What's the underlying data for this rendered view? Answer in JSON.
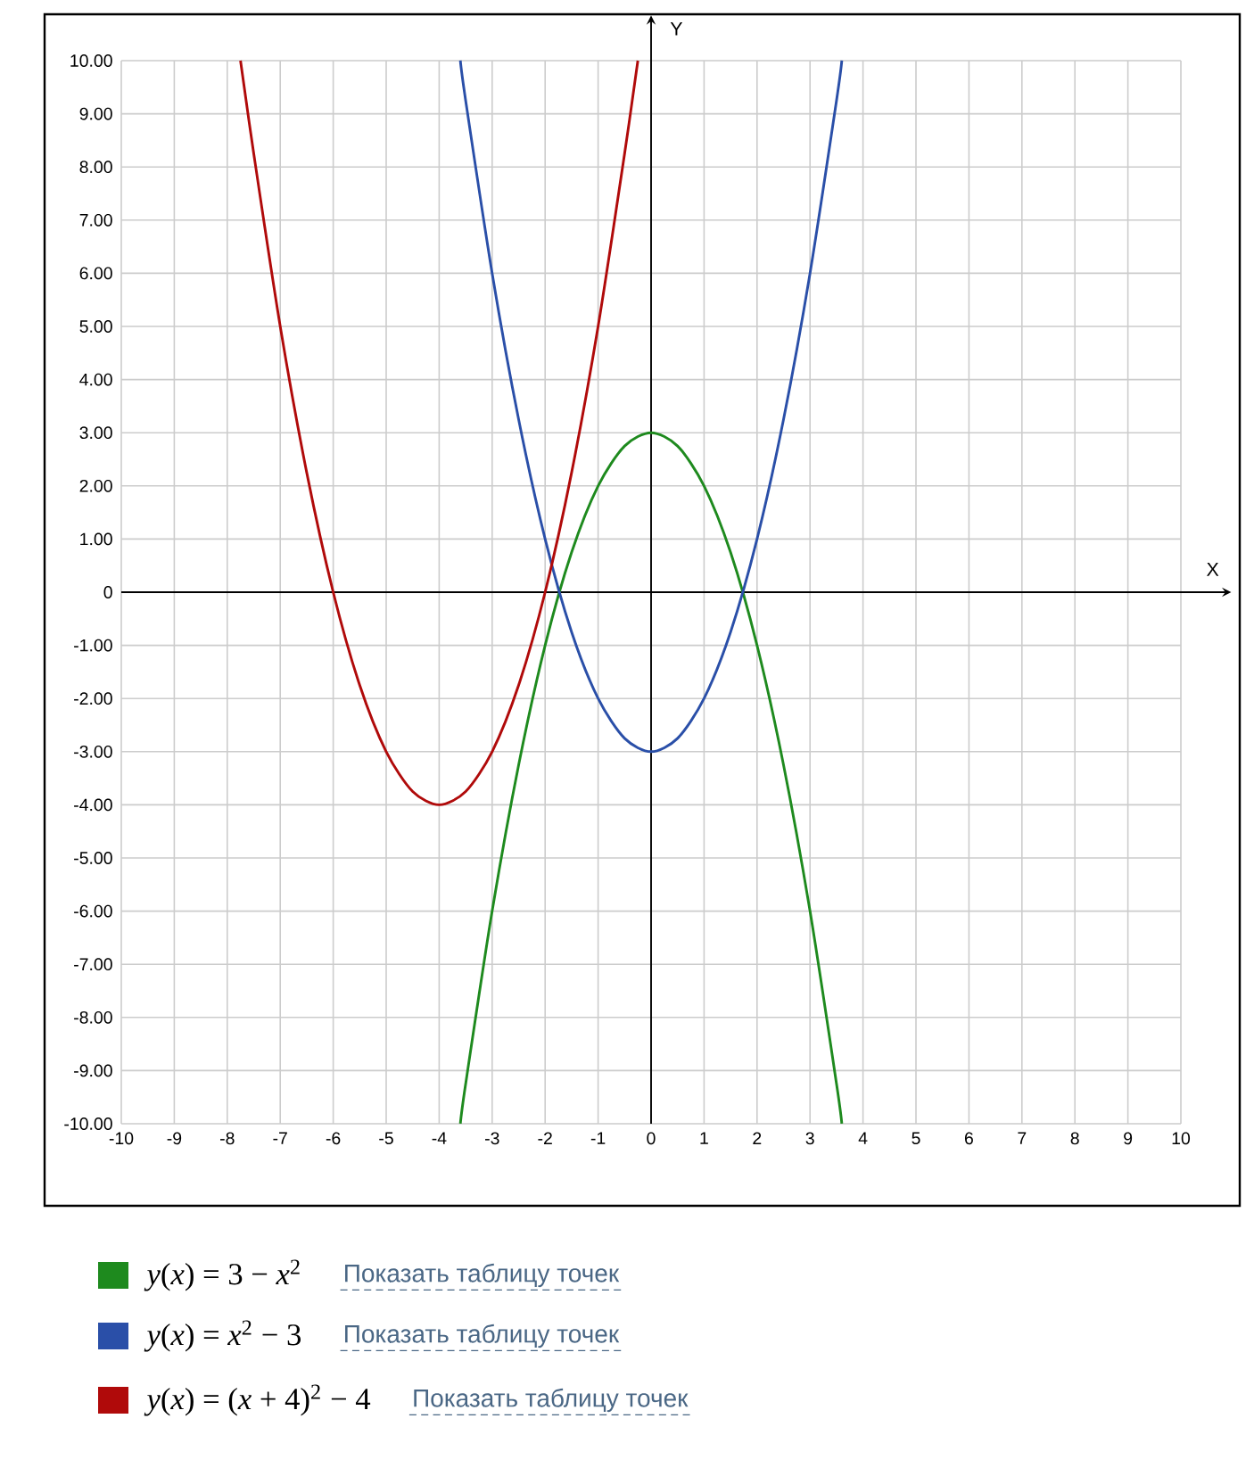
{
  "chart_data": {
    "type": "line",
    "xlabel": "X",
    "ylabel": "Y",
    "xlim": [
      -10,
      10
    ],
    "ylim": [
      -10,
      10
    ],
    "xticks": [
      -10,
      -9,
      -8,
      -7,
      -6,
      -5,
      -4,
      -3,
      -2,
      -1,
      0,
      1,
      2,
      3,
      4,
      5,
      6,
      7,
      8,
      9,
      10
    ],
    "yticks": [
      {
        "value": -10,
        "label": "-10.00"
      },
      {
        "value": -9,
        "label": "-9.00"
      },
      {
        "value": -8,
        "label": "-8.00"
      },
      {
        "value": -7,
        "label": "-7.00"
      },
      {
        "value": -6,
        "label": "-6.00"
      },
      {
        "value": -5,
        "label": "-5.00"
      },
      {
        "value": -4,
        "label": "-4.00"
      },
      {
        "value": -3,
        "label": "-3.00"
      },
      {
        "value": -2,
        "label": "-2.00"
      },
      {
        "value": -1,
        "label": "-1.00"
      },
      0,
      {
        "value": 1,
        "label": "1.00"
      },
      {
        "value": 2,
        "label": "2.00"
      },
      {
        "value": 3,
        "label": "3.00"
      },
      {
        "value": 4,
        "label": "4.00"
      },
      {
        "value": 5,
        "label": "5.00"
      },
      {
        "value": 6,
        "label": "6.00"
      },
      {
        "value": 7,
        "label": "7.00"
      },
      {
        "value": 8,
        "label": "8.00"
      },
      {
        "value": 9,
        "label": "9.00"
      },
      {
        "value": 10,
        "label": "10.00"
      }
    ],
    "grid": true,
    "legend": "bottom",
    "line_style": "solid",
    "series": [
      {
        "name": "*y*(*x*) = 3 − *x*$^{2}$",
        "color": "#1e8a1e",
        "x": [
          -3.6,
          -3.5,
          -3,
          -2.5,
          -2,
          -1.5,
          -1,
          -0.5,
          0,
          0.5,
          1,
          1.5,
          2,
          2.5,
          3,
          3.5,
          3.6
        ],
        "values": [
          -10,
          -9.25,
          -6,
          -3.25,
          -1,
          0.75,
          2,
          2.75,
          3,
          2.75,
          2,
          0.75,
          -1,
          -3.25,
          -6,
          -9.25,
          -10
        ]
      },
      {
        "name": "*y*(*x*) = *x*$^{2}$ − 3",
        "color": "#2a4fa8",
        "x": [
          -3.6,
          -3.5,
          -3,
          -2.5,
          -2,
          -1.5,
          -1,
          -0.5,
          0,
          0.5,
          1,
          1.5,
          2,
          2.5,
          3,
          3.5,
          3.6
        ],
        "values": [
          10,
          9.25,
          6,
          3.25,
          1,
          -0.75,
          -2,
          -2.75,
          -3,
          -2.75,
          -2,
          -0.75,
          1,
          3.25,
          6,
          9.25,
          10
        ]
      },
      {
        "name": "*y*(*x*) = (*x* + 4)$^{2}$ − 4",
        "color": "#b00a0a",
        "x": [
          -7.75,
          -7.5,
          -7,
          -6.5,
          -6,
          -5.5,
          -5,
          -4.5,
          -4,
          -3.5,
          -3,
          -2.5,
          -2,
          -1.5,
          -1,
          -0.5,
          -0.25
        ],
        "values": [
          10,
          8.25,
          5,
          2.25,
          0,
          -1.75,
          -3,
          -3.75,
          -4,
          -3.75,
          -3,
          -1.75,
          0,
          2.25,
          5,
          8.25,
          10
        ]
      }
    ],
    "annotations": [
      "Показать таблицу точек",
      "Показать таблицу точек",
      "Показать таблицу точек"
    ]
  }
}
